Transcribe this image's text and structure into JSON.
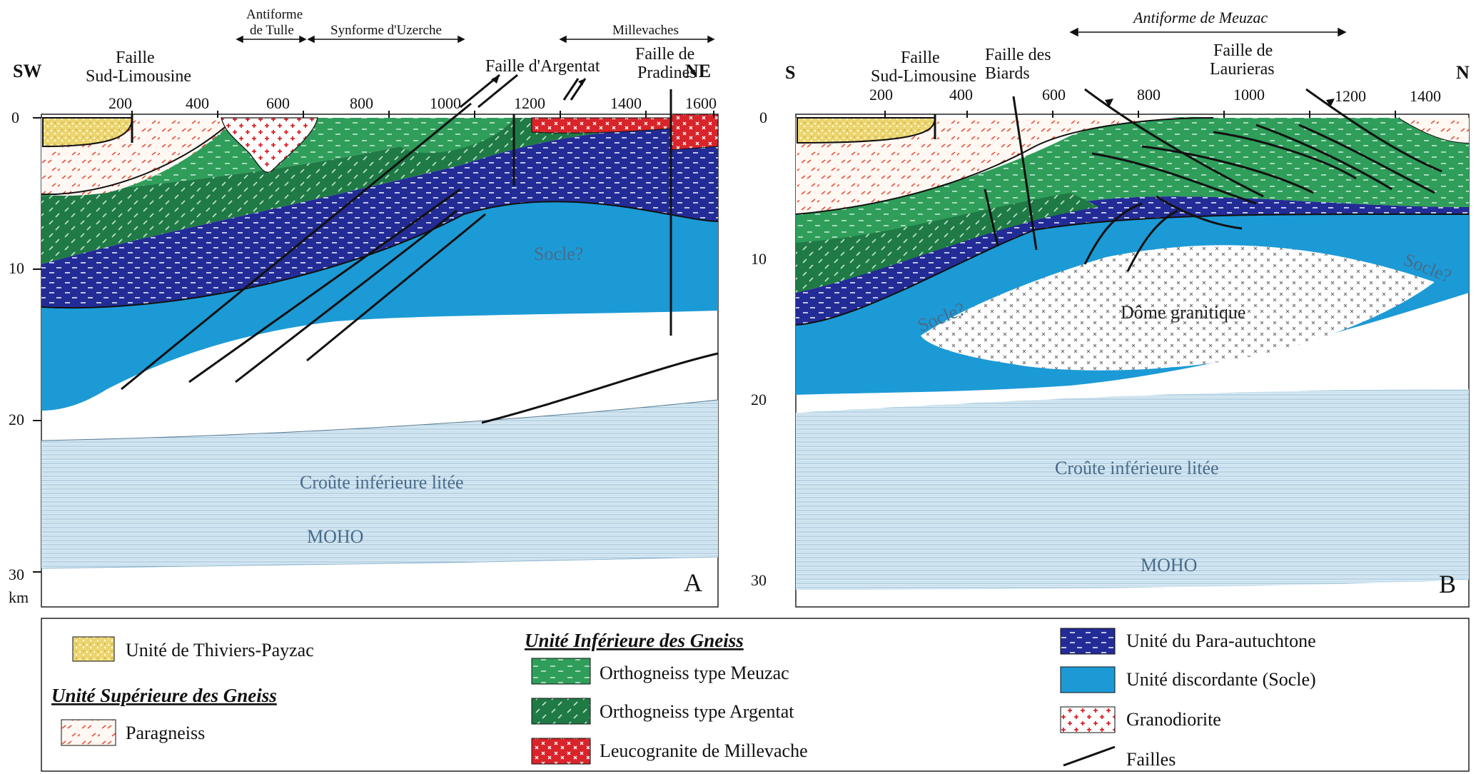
{
  "colors": {
    "thiviers": "#e9d36b",
    "paragneiss_bg": "#fff8f4",
    "paragneiss_mark": "#e0513a",
    "ortho_meuzac": "#2f9e5a",
    "ortho_argentat": "#1f7a45",
    "leucogranite": "#d8242a",
    "para_autochtone": "#232c96",
    "socle": "#1c9ad6",
    "granodiorite": "#d8242a",
    "lower_crust": "#cfe7f4",
    "fault": "#111111"
  },
  "panelA": {
    "dir_left": "SW",
    "dir_right": "NE",
    "letter": "A",
    "header_antiforme_tulle_1": "Antiforme",
    "header_antiforme_tulle_2": "de Tulle",
    "header_synforme": "Synforme d'Uzerche",
    "header_millevaches": "Millevaches",
    "x_ticks": [
      "200",
      "400",
      "600",
      "800",
      "1000",
      "1200",
      "1400",
      "1600"
    ],
    "depth_ticks": [
      "0",
      "10",
      "20",
      "30"
    ],
    "depth_unit": "km",
    "faille_sud_limousine_1": "Faille",
    "faille_sud_limousine_2": "Sud-Limousine",
    "faille_argentat": "Faille d'Argentat",
    "faille_pradines_1": "Faille de",
    "faille_pradines_2": "Pradines",
    "socle_label": "Socle?",
    "lower_crust_label": "Croûte inférieure litée",
    "moho_label": "MOHO"
  },
  "panelB": {
    "dir_left": "S",
    "dir_right": "N",
    "letter": "B",
    "header_antiforme": "Antiforme de Meuzac",
    "x_ticks": [
      "200",
      "400",
      "600",
      "800",
      "1000",
      "1200",
      "1400"
    ],
    "depth_ticks": [
      "0",
      "10",
      "20",
      "30"
    ],
    "faille_sud_limousine_1": "Faille",
    "faille_sud_limousine_2": "Sud-Limousine",
    "faille_biards_1": "Faille des",
    "faille_biards_2": "Biards",
    "faille_laurieras_1": "Faille de",
    "faille_laurieras_2": "Laurieras",
    "socle_label_left": "Socle?",
    "socle_label_right": "Socle?",
    "dome_label": "Dôme granitique",
    "lower_crust_label": "Croûte inférieure litée",
    "moho_label": "MOHO"
  },
  "legend": {
    "thiviers": "Unité  de Thiviers-Payzac",
    "superieure_title": "Unité Supérieure des Gneiss",
    "paragneiss": "Paragneiss",
    "inferieure_title": "Unité Inférieure des Gneiss",
    "ortho_meuzac": "Orthogneiss type Meuzac",
    "ortho_argentat": "Orthogneiss type Argentat",
    "leucogranite": "Leucogranite de Millevache",
    "para_autochtone": "Unité du Para-autuchtone",
    "socle": "Unité  discordante (Socle)",
    "granodiorite": "Granodiorite",
    "failles": "Failles"
  }
}
